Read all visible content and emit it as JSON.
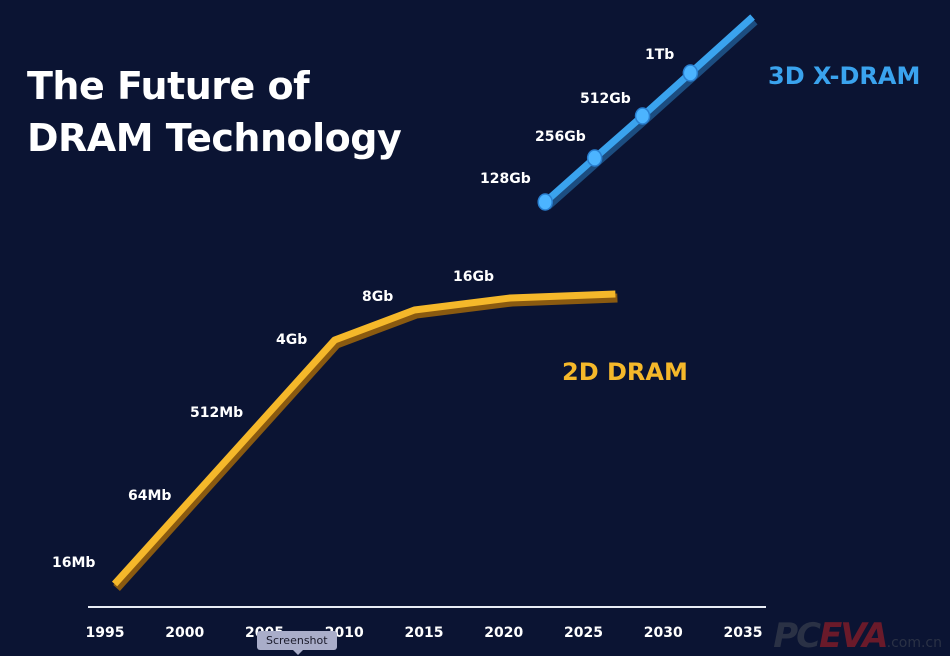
{
  "title_line1": "The Future of",
  "title_line2": "DRAM Technology",
  "chart_data": {
    "type": "line",
    "x_ticks": [
      "1995",
      "2000",
      "2005",
      "2010",
      "2015",
      "2020",
      "2025",
      "2030",
      "2035"
    ],
    "xlim": [
      1995,
      2035
    ],
    "grid": false,
    "series": [
      {
        "name": "2D DRAM",
        "color": "#f5b82a",
        "points": [
          {
            "year": 1995.6,
            "label": "16Mb"
          },
          {
            "year": 1999.5,
            "label": "64Mb"
          },
          {
            "year": 2004,
            "label": "512Mb"
          },
          {
            "year": 2009.4,
            "label": "4Gb"
          },
          {
            "year": 2014.4,
            "label": "8Gb"
          },
          {
            "year": 2020.4,
            "label": "16Gb"
          },
          {
            "year": 2027,
            "label": ""
          }
        ]
      },
      {
        "name": "3D X-DRAM",
        "color": "#3aa3ee",
        "points": [
          {
            "year": 2022.6,
            "label": "128Gb"
          },
          {
            "year": 2025.7,
            "label": "256Gb"
          },
          {
            "year": 2028.7,
            "label": "512Gb"
          },
          {
            "year": 2031.7,
            "label": "1Tb"
          },
          {
            "year": 2035.6,
            "label": ""
          }
        ]
      }
    ]
  },
  "tooltip": "Screenshot",
  "watermark": {
    "part1": "PC",
    "part2": "EVA",
    "part3": ".com.cn"
  }
}
